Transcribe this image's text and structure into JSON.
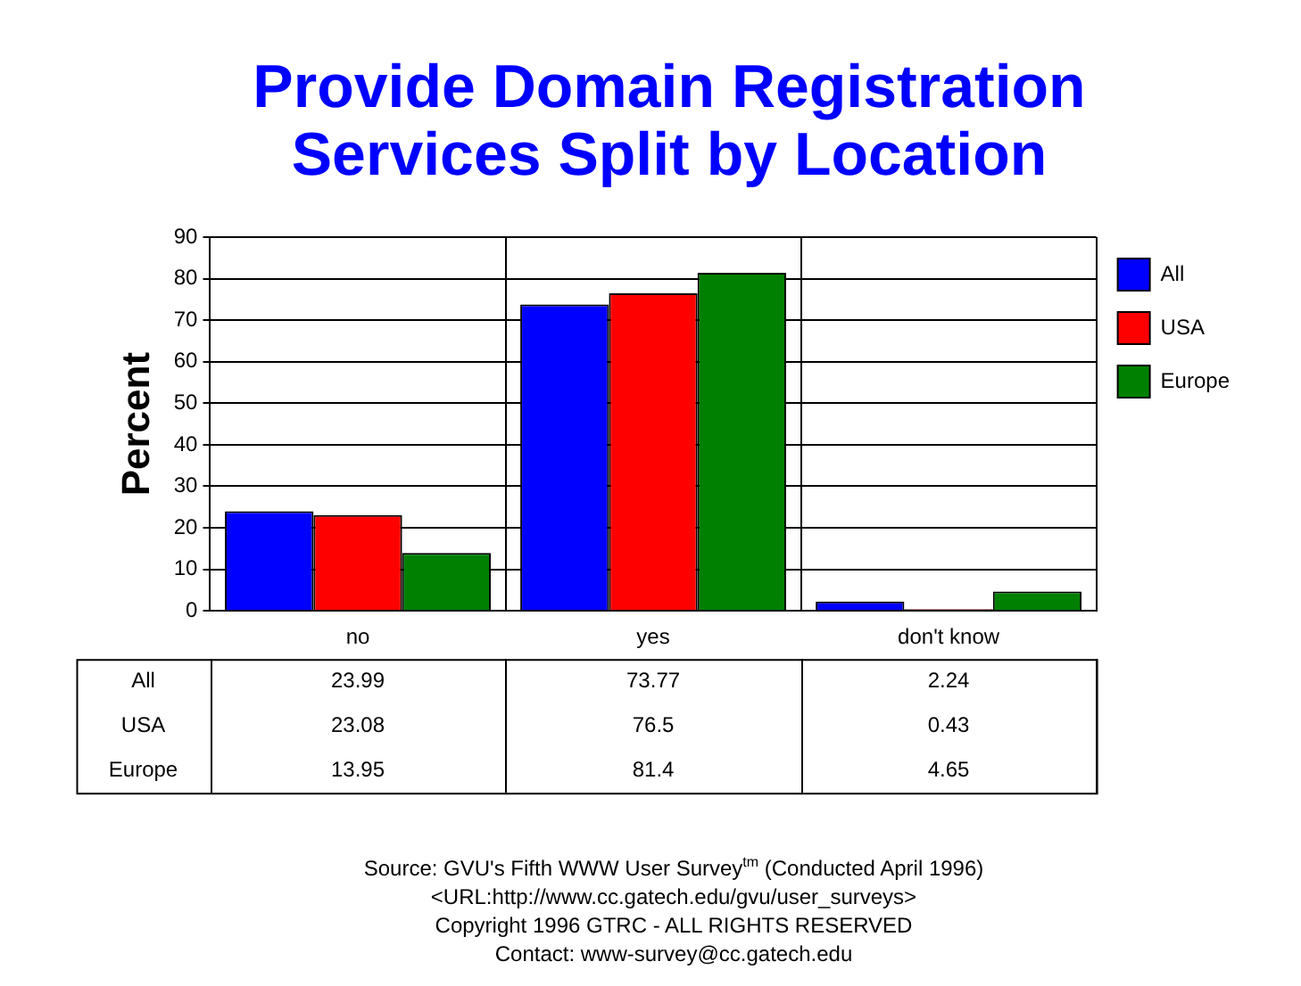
{
  "chart_data": {
    "type": "bar",
    "title": "Provide Domain Registration Services Split by Location",
    "ylabel": "Percent",
    "categories": [
      "no",
      "yes",
      "don't know"
    ],
    "series": [
      {
        "name": "All",
        "color": "#0000ff",
        "values": [
          23.99,
          73.77,
          2.24
        ]
      },
      {
        "name": "USA",
        "color": "#ff0000",
        "values": [
          23.08,
          76.5,
          0.43
        ]
      },
      {
        "name": "Europe",
        "color": "#008000",
        "values": [
          13.95,
          81.4,
          4.65
        ]
      }
    ],
    "ylim": [
      0,
      90
    ],
    "yticks": [
      0,
      10,
      20,
      30,
      40,
      50,
      60,
      70,
      80,
      90
    ],
    "grid": true,
    "legend": "top right",
    "data_labels": true,
    "annotations": [
      "Source: GVU's Fifth WWW User Survey$^{tm}$  (Conducted April 1996)",
      "<URL:http://www.cc.gatech.edu/gvu/user_surveys>",
      "Copyright 1996 GTRC -  ALL RIGHTS RESERVED",
      "Contact: www-survey@cc.gatech.edu"
    ]
  }
}
